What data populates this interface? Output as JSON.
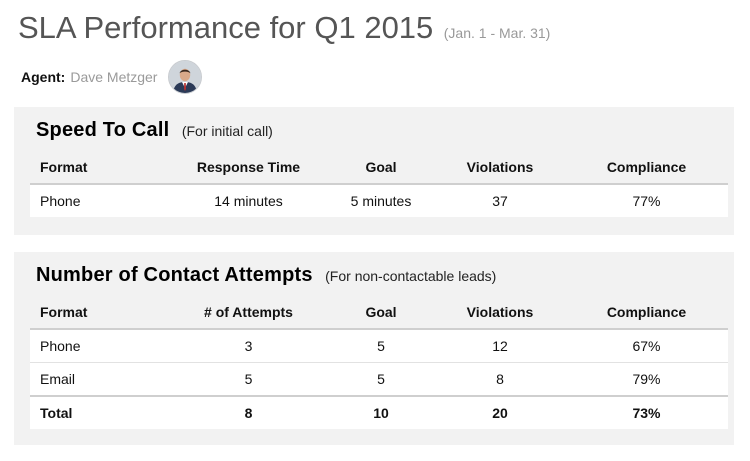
{
  "header": {
    "title": "SLA Performance for Q1 2015",
    "date_range": "(Jan. 1 - Mar. 31)",
    "agent_label": "Agent:",
    "agent_name": "Dave Metzger"
  },
  "speed_to_call": {
    "title": "Speed To Call",
    "subtitle": "(For initial call)",
    "columns": [
      "Format",
      "Response Time",
      "Goal",
      "Violations",
      "Compliance"
    ],
    "rows": [
      [
        "Phone",
        "14 minutes",
        "5 minutes",
        "37",
        "77%"
      ]
    ]
  },
  "contact_attempts": {
    "title": "Number of Contact Attempts",
    "subtitle": "(For non-contactable leads)",
    "columns": [
      "Format",
      "# of Attempts",
      "Goal",
      "Violations",
      "Compliance"
    ],
    "rows": [
      [
        "Phone",
        "3",
        "5",
        "12",
        "67%"
      ],
      [
        "Email",
        "5",
        "5",
        "8",
        "79%"
      ]
    ],
    "total": [
      "Total",
      "8",
      "10",
      "20",
      "73%"
    ]
  }
}
